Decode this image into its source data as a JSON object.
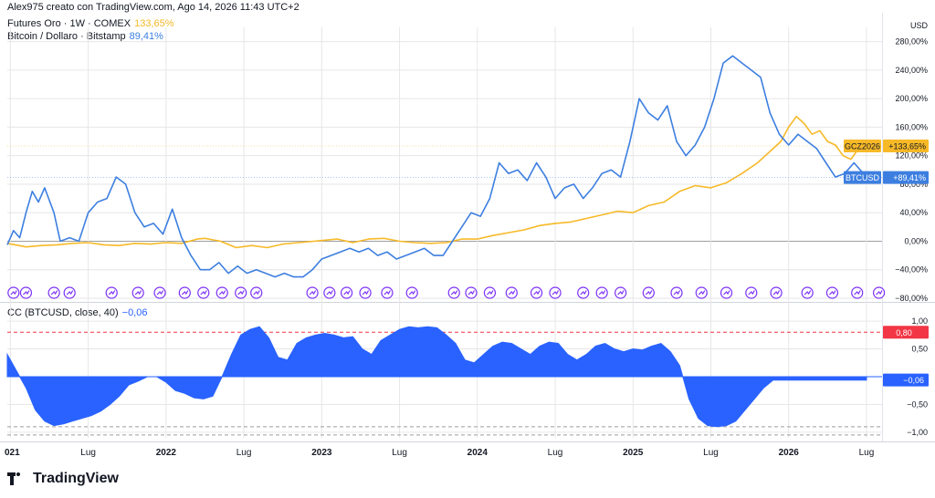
{
  "header": {
    "attribution": "Alex975 creato con TradingView.com, Ago 14, 2026 11:43 UTC+2",
    "series1_label": "Futures Oro · 1W · COMEX",
    "series1_value": "133,65%",
    "series2_label": "Bitcoin / Dollaro · Bitstamp",
    "series2_value": "89,41%",
    "indicator_label": "CC (BTCUSD, close, 40)",
    "indicator_value": "−0,06"
  },
  "colors": {
    "gold": "#f7b928",
    "btc": "#3d7fe0",
    "cc_fill": "#2962ff",
    "ref_line": "#f23645",
    "grid": "#e6e6e6",
    "event_icon": "#7b2ff7"
  },
  "footer": {
    "brand": "TradingView"
  },
  "chart_data": [
    {
      "type": "line",
      "unit": "USD",
      "ylim": [
        -80,
        300
      ],
      "y_ticks": [
        280,
        240,
        200,
        160,
        120,
        80,
        40,
        0,
        -40,
        -80
      ],
      "y_tick_labels": [
        "280,00%",
        "240,00%",
        "200,00%",
        "160,00%",
        "120,00%",
        "80,00%",
        "40,00%",
        "0,00%",
        "−40,00%",
        "−80,00%"
      ],
      "x_ticks": [
        "021",
        "Lug",
        "2022",
        "Lug",
        "2023",
        "Lug",
        "2024",
        "Lug",
        "2025",
        "Lug",
        "2026",
        "Lug"
      ],
      "x_tick_dates": [
        2021.0,
        2021.5,
        2022.0,
        2022.5,
        2023.0,
        2023.5,
        2024.0,
        2024.5,
        2025.0,
        2025.5,
        2026.0,
        2026.5
      ],
      "x_range": [
        2020.98,
        2026.6
      ],
      "series": [
        {
          "name": "GCZ2026",
          "last_value_label": "+133,65%",
          "x": [
            2020.98,
            2021.1,
            2021.2,
            2021.3,
            2021.4,
            2021.5,
            2021.6,
            2021.7,
            2021.8,
            2021.9,
            2022.0,
            2022.1,
            2022.2,
            2022.25,
            2022.35,
            2022.45,
            2022.55,
            2022.65,
            2022.75,
            2022.85,
            2022.95,
            2023.0,
            2023.1,
            2023.2,
            2023.3,
            2023.4,
            2023.5,
            2023.6,
            2023.7,
            2023.8,
            2023.9,
            2024.0,
            2024.1,
            2024.2,
            2024.3,
            2024.4,
            2024.5,
            2024.6,
            2024.7,
            2024.8,
            2024.9,
            2025.0,
            2025.1,
            2025.2,
            2025.3,
            2025.4,
            2025.5,
            2025.6,
            2025.7,
            2025.8,
            2025.85,
            2025.9,
            2025.95,
            2026.0,
            2026.05,
            2026.1,
            2026.15,
            2026.2,
            2026.25,
            2026.3,
            2026.35,
            2026.4,
            2026.45,
            2026.5
          ],
          "values": [
            -3,
            -8,
            -6,
            -5,
            -3,
            -2,
            -5,
            -6,
            -3,
            -4,
            -2,
            -3,
            3,
            4,
            0,
            -9,
            -6,
            -9,
            -4,
            -2,
            0,
            1,
            3,
            -2,
            3,
            4,
            0,
            -2,
            -3,
            -2,
            3,
            3,
            8,
            12,
            16,
            22,
            25,
            27,
            32,
            37,
            42,
            40,
            50,
            55,
            70,
            78,
            75,
            82,
            95,
            110,
            120,
            130,
            140,
            160,
            175,
            165,
            150,
            155,
            140,
            135,
            120,
            115,
            130,
            133.65
          ]
        },
        {
          "name": "BTCUSD",
          "last_value_label": "+89,41%",
          "x": [
            2020.98,
            2021.02,
            2021.06,
            2021.1,
            2021.14,
            2021.18,
            2021.22,
            2021.28,
            2021.32,
            2021.38,
            2021.44,
            2021.5,
            2021.56,
            2021.62,
            2021.68,
            2021.74,
            2021.8,
            2021.86,
            2021.92,
            2021.98,
            2022.04,
            2022.1,
            2022.16,
            2022.22,
            2022.28,
            2022.34,
            2022.4,
            2022.46,
            2022.52,
            2022.58,
            2022.64,
            2022.7,
            2022.76,
            2022.82,
            2022.88,
            2022.94,
            2023.0,
            2023.06,
            2023.12,
            2023.18,
            2023.24,
            2023.3,
            2023.36,
            2023.42,
            2023.48,
            2023.54,
            2023.6,
            2023.66,
            2023.72,
            2023.78,
            2023.84,
            2023.9,
            2023.96,
            2024.02,
            2024.08,
            2024.14,
            2024.2,
            2024.26,
            2024.32,
            2024.38,
            2024.44,
            2024.5,
            2024.56,
            2024.62,
            2024.68,
            2024.74,
            2024.8,
            2024.86,
            2024.92,
            2024.98,
            2025.04,
            2025.1,
            2025.16,
            2025.22,
            2025.28,
            2025.34,
            2025.4,
            2025.46,
            2025.52,
            2025.58,
            2025.64,
            2025.7,
            2025.76,
            2025.82,
            2025.88,
            2025.94,
            2026.0,
            2026.06,
            2026.12,
            2026.18,
            2026.24,
            2026.3,
            2026.36,
            2026.42,
            2026.48,
            2026.5
          ],
          "values": [
            -5,
            15,
            5,
            40,
            70,
            55,
            75,
            40,
            0,
            5,
            0,
            40,
            55,
            60,
            90,
            80,
            40,
            20,
            25,
            10,
            45,
            5,
            -20,
            -40,
            -40,
            -30,
            -45,
            -35,
            -45,
            -40,
            -45,
            -50,
            -45,
            -50,
            -50,
            -40,
            -25,
            -20,
            -15,
            -10,
            -15,
            -10,
            -20,
            -15,
            -25,
            -20,
            -15,
            -10,
            -20,
            -20,
            0,
            20,
            40,
            35,
            60,
            110,
            95,
            100,
            85,
            110,
            90,
            60,
            75,
            80,
            60,
            75,
            95,
            100,
            90,
            140,
            200,
            180,
            170,
            190,
            140,
            120,
            135,
            160,
            200,
            250,
            260,
            250,
            240,
            230,
            180,
            150,
            135,
            150,
            140,
            130,
            110,
            90,
            95,
            110,
            95,
            89.41
          ]
        }
      ],
      "event_markers_x": [
        2021.02,
        2021.1,
        2021.28,
        2021.38,
        2021.65,
        2021.82,
        2021.96,
        2022.12,
        2022.24,
        2022.36,
        2022.48,
        2022.58,
        2022.94,
        2023.05,
        2023.16,
        2023.28,
        2023.42,
        2023.58,
        2023.85,
        2023.96,
        2024.08,
        2024.22,
        2024.38,
        2024.5,
        2024.68,
        2024.8,
        2024.92,
        2025.1,
        2025.28,
        2025.44,
        2025.6,
        2025.76,
        2025.92,
        2026.12,
        2026.28,
        2026.44,
        2026.58
      ]
    },
    {
      "type": "area",
      "title": "CC (BTCUSD, close, 40)",
      "ylim": [
        -1.1,
        1.1
      ],
      "y_ticks": [
        1.0,
        0.5,
        -0.5,
        -1.0
      ],
      "y_tick_labels": [
        "1,00",
        "0,50",
        "−0,50",
        "−1,00"
      ],
      "reference_lines": [
        {
          "value": 0.8,
          "label": "0,80"
        },
        {
          "value": -0.9,
          "label": ""
        }
      ],
      "last_value_label": "−0,06",
      "x": [
        2020.98,
        2021.04,
        2021.1,
        2021.16,
        2021.22,
        2021.28,
        2021.34,
        2021.4,
        2021.46,
        2021.52,
        2021.58,
        2021.64,
        2021.7,
        2021.76,
        2021.82,
        2021.88,
        2021.94,
        2022.0,
        2022.06,
        2022.12,
        2022.18,
        2022.24,
        2022.3,
        2022.36,
        2022.42,
        2022.48,
        2022.54,
        2022.6,
        2022.66,
        2022.72,
        2022.78,
        2022.84,
        2022.9,
        2022.96,
        2023.02,
        2023.08,
        2023.14,
        2023.2,
        2023.26,
        2023.32,
        2023.38,
        2023.44,
        2023.5,
        2023.56,
        2023.62,
        2023.68,
        2023.74,
        2023.8,
        2023.86,
        2023.92,
        2023.98,
        2024.04,
        2024.1,
        2024.16,
        2024.22,
        2024.28,
        2024.34,
        2024.4,
        2024.46,
        2024.52,
        2024.58,
        2024.64,
        2024.7,
        2024.76,
        2024.82,
        2024.88,
        2024.94,
        2025.0,
        2025.06,
        2025.12,
        2025.18,
        2025.24,
        2025.3,
        2025.36,
        2025.42,
        2025.48,
        2025.54,
        2025.6,
        2025.66,
        2025.72,
        2025.78,
        2025.84,
        2025.9,
        2025.96,
        2026.02,
        2026.08,
        2026.14,
        2026.2,
        2026.26,
        2026.32,
        2026.38,
        2026.44,
        2026.5
      ],
      "values": [
        0.4,
        0.1,
        -0.2,
        -0.6,
        -0.8,
        -0.88,
        -0.85,
        -0.8,
        -0.75,
        -0.7,
        -0.62,
        -0.5,
        -0.35,
        -0.15,
        -0.08,
        0.0,
        0.0,
        -0.1,
        -0.25,
        -0.3,
        -0.38,
        -0.4,
        -0.35,
        0.0,
        0.4,
        0.75,
        0.85,
        0.9,
        0.7,
        0.35,
        0.3,
        0.6,
        0.7,
        0.75,
        0.78,
        0.75,
        0.7,
        0.72,
        0.5,
        0.4,
        0.65,
        0.75,
        0.85,
        0.9,
        0.88,
        0.9,
        0.88,
        0.75,
        0.6,
        0.3,
        0.25,
        0.4,
        0.55,
        0.62,
        0.6,
        0.5,
        0.4,
        0.55,
        0.62,
        0.6,
        0.4,
        0.3,
        0.4,
        0.55,
        0.6,
        0.5,
        0.45,
        0.5,
        0.48,
        0.55,
        0.6,
        0.45,
        0.2,
        -0.4,
        -0.75,
        -0.88,
        -0.9,
        -0.88,
        -0.8,
        -0.6,
        -0.4,
        -0.2,
        -0.06,
        -0.06,
        -0.06,
        -0.06,
        -0.06,
        -0.06,
        -0.06,
        -0.06,
        -0.06,
        -0.06,
        -0.06
      ]
    }
  ]
}
